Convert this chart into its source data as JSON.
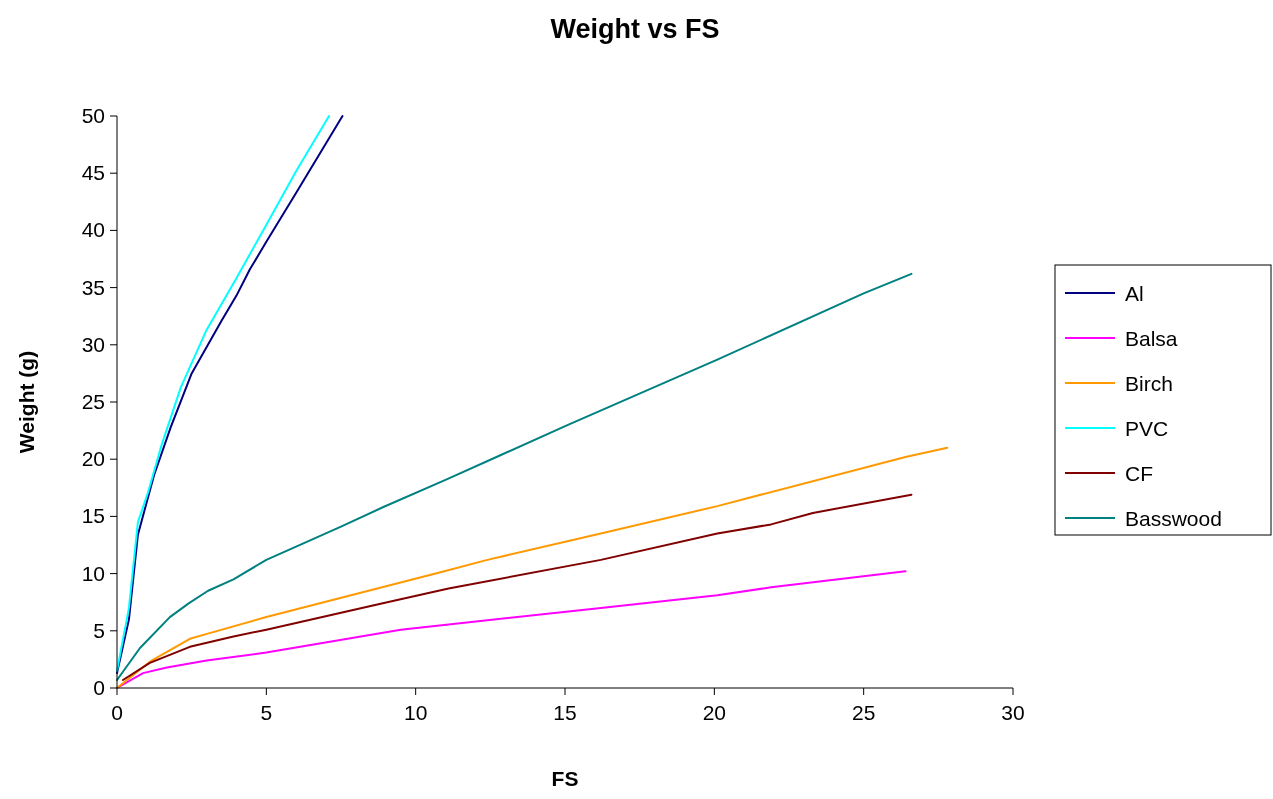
{
  "chart_data": {
    "type": "line",
    "title": "Weight vs FS",
    "xlabel": "FS",
    "ylabel": "Weight (g)",
    "xlim": [
      0,
      30
    ],
    "xticks": [
      0,
      5,
      10,
      15,
      20,
      25,
      30
    ],
    "ylim": [
      0,
      50
    ],
    "yticks": [
      0,
      5,
      10,
      15,
      20,
      25,
      30,
      35,
      40,
      45,
      50
    ],
    "grid": false,
    "legend": "right",
    "marker": "none",
    "line_style": "solid",
    "series": [
      {
        "name": "Al",
        "color": "#000080",
        "x": [
          0,
          0.4,
          0.7,
          1.24,
          1.8,
          2.5,
          3.5,
          4,
          4.45,
          5,
          6,
          7.55
        ],
        "values": [
          1.3,
          6,
          13.4,
          18.6,
          22.8,
          27.5,
          32.1,
          34.3,
          36.6,
          39,
          43.3,
          50
        ]
      },
      {
        "name": "Balsa",
        "color": "#ff00ff",
        "x": [
          0,
          0.87,
          1.67,
          3,
          5,
          9.5,
          16.2,
          20.1,
          21.9,
          26.4
        ],
        "values": [
          0,
          1.3,
          1.8,
          2.4,
          3.1,
          5.1,
          7,
          8.1,
          8.8,
          10.2
        ]
      },
      {
        "name": "Birch",
        "color": "#ff9900",
        "x": [
          0,
          1.1,
          2.44,
          3.1,
          5,
          10.8,
          12.4,
          16.2,
          20.1,
          26.4,
          27.8
        ],
        "values": [
          0,
          2.3,
          4.3,
          4.8,
          6.2,
          10.1,
          11.2,
          13.5,
          15.9,
          20.2,
          21
        ]
      },
      {
        "name": "PVC",
        "color": "#00ffff",
        "x": [
          0,
          0.4,
          0.7,
          1.04,
          1.5,
          2.14,
          2.98,
          3.95,
          4.96,
          6,
          7.1
        ],
        "values": [
          1.5,
          7,
          14.5,
          17.1,
          21.3,
          26.3,
          31.2,
          35.6,
          40.3,
          45.2,
          50
        ]
      },
      {
        "name": "CF",
        "color": "#800000",
        "x": [
          0.2,
          1.1,
          2.44,
          3.9,
          5,
          8.9,
          11.1,
          16.2,
          20.1,
          21.9,
          23.3,
          26.6
        ],
        "values": [
          0.7,
          2.2,
          3.6,
          4.5,
          5.1,
          7.4,
          8.7,
          11.2,
          13.5,
          14.3,
          15.3,
          16.9
        ]
      },
      {
        "name": "Basswood",
        "color": "#008080",
        "x": [
          0,
          0.77,
          1.77,
          2.4,
          3.05,
          3.9,
          5,
          7.5,
          8.9,
          11,
          12.8,
          15.1,
          20.1,
          25,
          26.6
        ],
        "values": [
          0.7,
          3.5,
          6.2,
          7.4,
          8.5,
          9.5,
          11.2,
          14.1,
          15.8,
          18.2,
          20.3,
          23,
          28.7,
          34.5,
          36.2
        ]
      }
    ]
  }
}
